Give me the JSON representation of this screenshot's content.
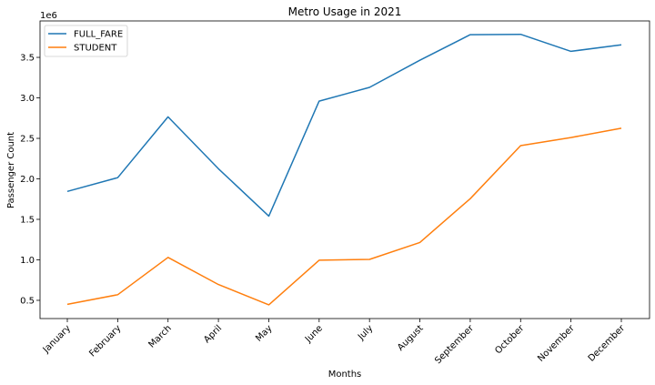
{
  "chart_data": {
    "type": "line",
    "title": "Metro Usage in 2021",
    "xlabel": "Months",
    "ylabel": "Passenger Count",
    "y_offset_label": "1e6",
    "categories": [
      "January",
      "February",
      "March",
      "April",
      "May",
      "June",
      "July",
      "August",
      "September",
      "October",
      "November",
      "December"
    ],
    "series": [
      {
        "name": "FULL_FARE",
        "color": "#1f77b4",
        "values": [
          1845000,
          2015000,
          2765000,
          2125000,
          1540000,
          2960000,
          3130000,
          3465000,
          3780000,
          3785000,
          3575000,
          3655000
        ]
      },
      {
        "name": "STUDENT",
        "color": "#ff7f0e",
        "values": [
          450000,
          570000,
          1030000,
          695000,
          445000,
          995000,
          1005000,
          1215000,
          1755000,
          2410000,
          2510000,
          2625000
        ]
      }
    ],
    "yticks": [
      0.5,
      1.0,
      1.5,
      2.0,
      2.5,
      3.0,
      3.5
    ],
    "ytick_labels": [
      "0.5",
      "1.0",
      "1.5",
      "2.0",
      "2.5",
      "3.0",
      "3.5"
    ],
    "ylim": [
      275000,
      3950000
    ],
    "grid": false,
    "legend_position": "top-left"
  }
}
